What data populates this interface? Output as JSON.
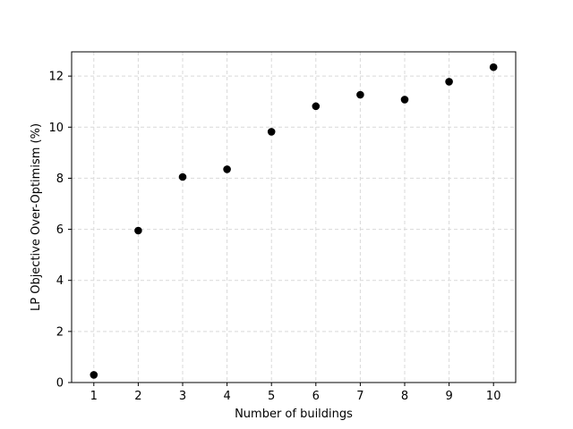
{
  "chart_data": {
    "type": "scatter",
    "title": "",
    "xlabel": "Number of buildings",
    "ylabel": "LP Objective Over-Optimism (%)",
    "x": [
      1,
      2,
      3,
      4,
      5,
      6,
      7,
      8,
      9,
      10
    ],
    "y": [
      0.3,
      5.95,
      8.05,
      8.35,
      9.82,
      10.82,
      11.27,
      11.08,
      11.78,
      12.35
    ],
    "xlim": [
      0.5,
      10.5
    ],
    "ylim": [
      0,
      12.95
    ],
    "xticks": [
      "1",
      "2",
      "3",
      "4",
      "5",
      "6",
      "7",
      "8",
      "9",
      "10"
    ],
    "yticks": [
      "0",
      "2",
      "4",
      "6",
      "8",
      "10",
      "12"
    ],
    "grid": true,
    "marker_color": "#000000",
    "grid_color": "#d9d9d9"
  }
}
